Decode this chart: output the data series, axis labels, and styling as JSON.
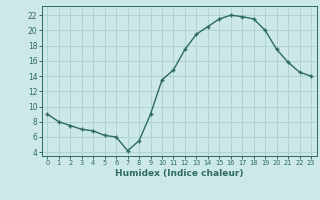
{
  "x": [
    0,
    1,
    2,
    3,
    4,
    5,
    6,
    7,
    8,
    9,
    10,
    11,
    12,
    13,
    14,
    15,
    16,
    17,
    18,
    19,
    20,
    21,
    22,
    23
  ],
  "y": [
    9.0,
    8.0,
    7.5,
    7.0,
    6.8,
    6.2,
    6.0,
    4.2,
    5.5,
    9.0,
    13.5,
    14.8,
    17.5,
    19.5,
    20.5,
    21.5,
    22.0,
    21.8,
    21.5,
    20.0,
    17.5,
    15.8,
    14.5,
    14.0
  ],
  "xlabel": "Humidex (Indice chaleur)",
  "line_color": "#2e6b5e",
  "marker_color": "#2e6b5e",
  "bg_color": "#cce8e8",
  "grid_color": "#afd4d4",
  "yticks": [
    4,
    6,
    8,
    10,
    12,
    14,
    16,
    18,
    20,
    22
  ],
  "xticks": [
    0,
    1,
    2,
    3,
    4,
    5,
    6,
    7,
    8,
    9,
    10,
    11,
    12,
    13,
    14,
    15,
    16,
    17,
    18,
    19,
    20,
    21,
    22,
    23
  ],
  "ylim": [
    3.5,
    23.2
  ],
  "xlim": [
    -0.5,
    23.5
  ]
}
